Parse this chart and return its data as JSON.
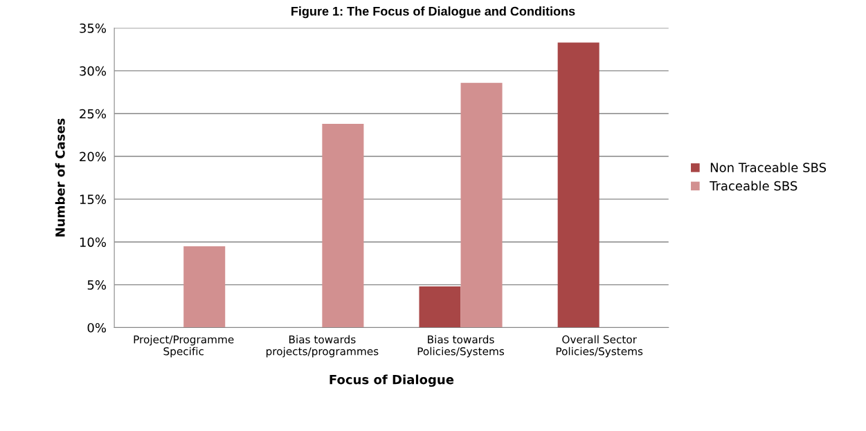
{
  "chart_data": {
    "type": "bar",
    "title": "Figure 1: The Focus of Dialogue and Conditions",
    "xlabel": "Focus of Dialogue",
    "ylabel": "Number of Cases",
    "categories": [
      "Project/Programme\nSpecific",
      "Bias towards\nprojects/programmes",
      "Bias towards\nPolicies/Systems",
      "Overall Sector\nPolicies/Systems"
    ],
    "series": [
      {
        "name": "Non Traceable SBS",
        "color": "#a84646",
        "values": [
          0,
          0,
          4.8,
          33.3
        ]
      },
      {
        "name": "Traceable SBS",
        "color": "#d29090",
        "values": [
          9.5,
          23.8,
          28.6,
          0
        ]
      }
    ],
    "ylim": [
      0,
      35
    ],
    "yticks": [
      {
        "value": 0,
        "label": "0%"
      },
      {
        "value": 5,
        "label": "5%"
      },
      {
        "value": 10,
        "label": "10%"
      },
      {
        "value": 15,
        "label": "15%"
      },
      {
        "value": 20,
        "label": "20%"
      },
      {
        "value": 25,
        "label": "25%"
      },
      {
        "value": 30,
        "label": "30%"
      },
      {
        "value": 35,
        "label": "35%"
      }
    ],
    "grid": "y",
    "legend": "right"
  }
}
